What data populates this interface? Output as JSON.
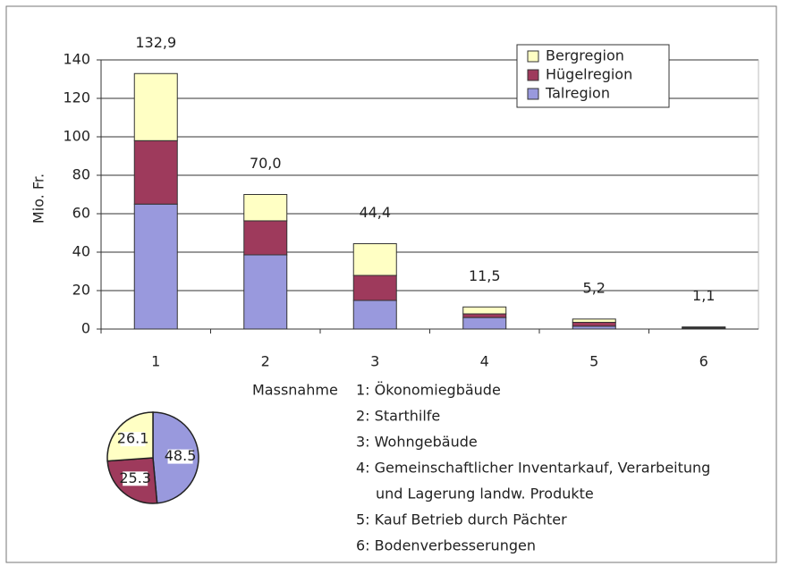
{
  "chart_data": [
    {
      "type": "stacked-bar",
      "categories": [
        "1",
        "2",
        "3",
        "4",
        "5",
        "6"
      ],
      "y_axis_title": "Mio. Fr.",
      "x_axis_title": "Massnahme",
      "series": [
        {
          "name": "Talregion",
          "color": "#9999dd",
          "values": [
            65.0,
            38.6,
            14.9,
            6.0,
            1.5,
            0.5
          ]
        },
        {
          "name": "Hügelregion",
          "color": "#9e3a5c",
          "values": [
            33.0,
            17.7,
            13.0,
            1.9,
            2.0,
            0.4
          ]
        },
        {
          "name": "Bergregion",
          "color": "#ffffc4",
          "values": [
            34.9,
            13.7,
            16.5,
            3.6,
            1.7,
            0.2
          ]
        }
      ],
      "totals": [
        132.9,
        70.0,
        44.4,
        11.5,
        5.2,
        1.1
      ],
      "total_labels": [
        "132,9",
        "70,0",
        "44,4",
        "11,5",
        "5,2",
        "1,1"
      ],
      "ylim": [
        0,
        140
      ],
      "yticks": [
        0,
        20,
        40,
        60,
        80,
        100,
        120,
        140
      ],
      "grid": true,
      "legend": "top-right",
      "notes": [
        "1: Ökonomiegbäude",
        "2: Starthilfe",
        "3: Wohngebäude",
        "4: Gemeinschaftlicher Inventarkauf, Verarbeitung",
        "und Lagerung landw. Produkte",
        "5: Kauf Betrieb durch Pächter",
        "6: Bodenverbesserungen"
      ]
    },
    {
      "type": "pie",
      "categories": [
        "Talregion",
        "Hügelregion",
        "Bergregion"
      ],
      "values": [
        48.5,
        25.3,
        26.1
      ],
      "colors": [
        "#9999dd",
        "#9e3a5c",
        "#ffffc4"
      ]
    }
  ]
}
